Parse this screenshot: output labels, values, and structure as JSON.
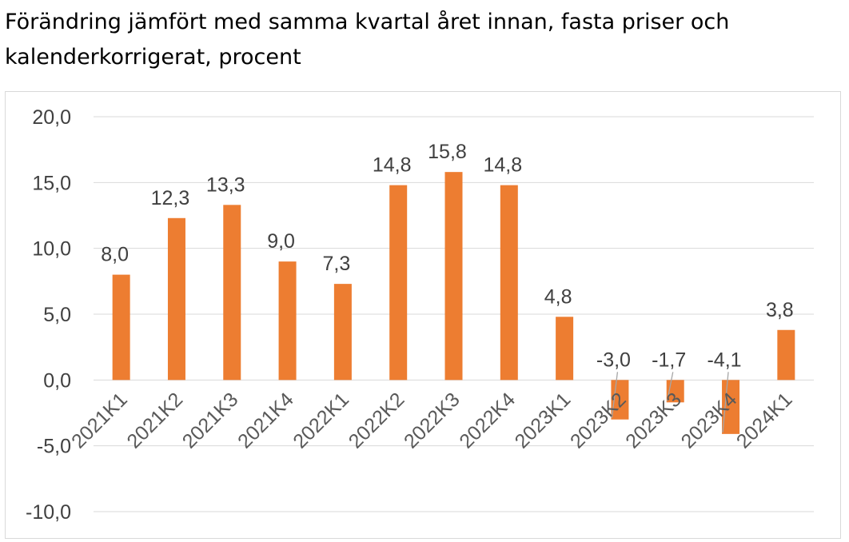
{
  "header": {
    "title": "Förändring jämfört med samma kvartal året innan, fasta priser och kalenderkorrigerat, procent"
  },
  "chart_data": {
    "type": "bar",
    "title": "Förändring jämfört med samma kvartal året innan, fasta priser och kalenderkorrigerat, procent",
    "xlabel": "",
    "ylabel": "",
    "categories": [
      "2021K1",
      "2021K2",
      "2021K3",
      "2021K4",
      "2022K1",
      "2022K2",
      "2022K3",
      "2022K4",
      "2023K1",
      "2023K2",
      "2023K3",
      "2023K4",
      "2024K1"
    ],
    "values": [
      8.0,
      12.3,
      13.3,
      9.0,
      7.3,
      14.8,
      15.8,
      14.8,
      4.8,
      -3.0,
      -1.7,
      -4.1,
      3.8
    ],
    "data_labels": [
      "8,0",
      "12,3",
      "13,3",
      "9,0",
      "7,3",
      "14,8",
      "15,8",
      "14,8",
      "4,8",
      "-3,0",
      "-1,7",
      "-4,1",
      "3,8"
    ],
    "yticks": [
      20,
      15,
      10,
      5,
      0,
      -5,
      -10
    ],
    "ytick_labels": [
      "20,0",
      "15,0",
      "10,0",
      "5,0",
      "0,0",
      "-5,0",
      "-10,0"
    ],
    "ylim": [
      -10,
      20
    ],
    "grid": true,
    "legend": "none",
    "colors": {
      "bar": "#ED7D31",
      "grid": "#d9d9d9",
      "leader": "#a6a6a6"
    }
  }
}
